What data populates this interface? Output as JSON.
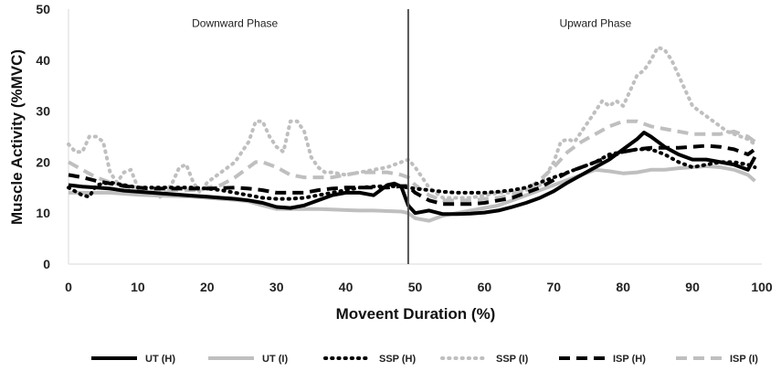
{
  "chart_data": {
    "type": "line",
    "title": "",
    "xlabel": "Moveent Duration (%)",
    "ylabel": "Muscle Activity (%MVC)",
    "xlim": [
      0,
      100
    ],
    "ylim": [
      0,
      50
    ],
    "xticks": [
      0,
      10,
      20,
      30,
      40,
      50,
      60,
      70,
      80,
      90,
      100
    ],
    "yticks": [
      0,
      10,
      20,
      30,
      40,
      50
    ],
    "grid": false,
    "divider_x": 49,
    "annotations": [
      {
        "text": "Downward Phase",
        "x": 24,
        "y": 46.5
      },
      {
        "text": "Upward Phase",
        "x": 76,
        "y": 46.5
      }
    ],
    "legend_position": "bottom",
    "series": [
      {
        "name": "UT (H)",
        "color": "#000000",
        "style": "solid",
        "width": 4,
        "x": [
          0,
          2,
          4,
          6,
          8,
          10,
          12,
          14,
          16,
          18,
          20,
          22,
          24,
          26,
          28,
          30,
          32,
          34,
          36,
          38,
          40,
          42,
          44,
          46,
          47,
          48,
          49,
          50,
          52,
          54,
          56,
          58,
          60,
          62,
          64,
          66,
          68,
          70,
          72,
          74,
          76,
          78,
          80,
          82,
          83,
          84,
          86,
          88,
          90,
          92,
          94,
          96,
          98,
          99
        ],
        "values": [
          15.5,
          15.2,
          15,
          14.8,
          14.4,
          14.2,
          14,
          13.8,
          13.6,
          13.4,
          13.2,
          13,
          12.8,
          12.5,
          12,
          11.2,
          11,
          11.5,
          12.5,
          13.5,
          14,
          14,
          13.5,
          15.5,
          15.8,
          15.2,
          11.5,
          10,
          10.5,
          9.8,
          9.8,
          9.9,
          10.1,
          10.5,
          11.2,
          12,
          13,
          14.3,
          16,
          17.5,
          19,
          20.5,
          22.5,
          24.5,
          25.8,
          25,
          23,
          21.5,
          20.5,
          20.5,
          20,
          19.5,
          18.5,
          21
        ]
      },
      {
        "name": "UT (I)",
        "color": "#BFBFBF",
        "style": "solid",
        "width": 4,
        "x": [
          0,
          2,
          4,
          6,
          8,
          10,
          12,
          14,
          16,
          18,
          20,
          22,
          24,
          26,
          28,
          30,
          32,
          34,
          36,
          38,
          40,
          42,
          44,
          46,
          48,
          49,
          50,
          52,
          54,
          56,
          58,
          60,
          62,
          64,
          66,
          68,
          70,
          72,
          74,
          76,
          78,
          80,
          82,
          84,
          86,
          88,
          90,
          92,
          94,
          96,
          98,
          99
        ],
        "values": [
          14,
          14,
          14,
          14,
          13.8,
          13.6,
          13.5,
          13.4,
          13.3,
          13.2,
          13,
          12.8,
          12.6,
          12.3,
          11.5,
          10.8,
          10.8,
          10.8,
          10.8,
          10.7,
          10.6,
          10.5,
          10.5,
          10.4,
          10.3,
          10,
          9,
          8.5,
          9.5,
          10,
          10.5,
          11,
          11.5,
          12.5,
          13.5,
          14.5,
          15.5,
          16.5,
          17.5,
          18.5,
          18.2,
          17.8,
          18,
          18.5,
          18.5,
          18.8,
          19,
          19.2,
          19,
          18.5,
          17.5,
          16.3
        ]
      },
      {
        "name": "SSP (H)",
        "color": "#000000",
        "style": "dotted",
        "width": 4,
        "x": [
          0,
          2,
          3,
          4,
          6,
          8,
          10,
          12,
          14,
          16,
          18,
          20,
          22,
          24,
          26,
          28,
          30,
          32,
          34,
          36,
          38,
          40,
          42,
          44,
          46,
          48,
          49,
          50,
          52,
          54,
          56,
          58,
          60,
          62,
          64,
          66,
          68,
          70,
          72,
          74,
          76,
          78,
          80,
          82,
          84,
          86,
          88,
          90,
          92,
          94,
          96,
          98,
          99
        ],
        "values": [
          15,
          13.5,
          13.2,
          15.5,
          16,
          15.5,
          15,
          15,
          15,
          15,
          15,
          14.8,
          14.5,
          14,
          13.5,
          13,
          12.8,
          12.8,
          13,
          13.5,
          14,
          14.5,
          15,
          15.2,
          15.3,
          15.2,
          15,
          14.8,
          14.5,
          14.2,
          14,
          14,
          14,
          14.2,
          14.5,
          15,
          16,
          17,
          18,
          19,
          20,
          21.5,
          22,
          22.5,
          22.5,
          21.5,
          20,
          19,
          19.5,
          20,
          20,
          19.5,
          19
        ]
      },
      {
        "name": "SSP (I)",
        "color": "#BFBFBF",
        "style": "dotted",
        "width": 4,
        "x": [
          0,
          1,
          2,
          3,
          4,
          5,
          6,
          7,
          8,
          9,
          10,
          11,
          12,
          13,
          14,
          15,
          16,
          17,
          18,
          19,
          20,
          21,
          22,
          23,
          24,
          25,
          26,
          27,
          28,
          29,
          30,
          31,
          32,
          33,
          34,
          35,
          36,
          37,
          38,
          40,
          42,
          44,
          46,
          48,
          49,
          50,
          51,
          52,
          54,
          56,
          58,
          60,
          62,
          64,
          66,
          68,
          70,
          71,
          72,
          73,
          74,
          75,
          76,
          77,
          78,
          79,
          80,
          81,
          82,
          83,
          84,
          85,
          86,
          87,
          88,
          89,
          90,
          91,
          92,
          93,
          94,
          95,
          96,
          97,
          98,
          99
        ],
        "values": [
          23.5,
          22,
          22,
          25,
          25,
          24,
          18,
          16,
          18,
          18.5,
          15,
          14,
          14,
          13,
          14,
          16,
          19,
          19.5,
          16,
          14,
          16,
          17,
          18,
          19,
          20,
          22,
          24,
          28,
          28,
          25,
          23,
          22,
          28,
          28,
          26,
          21,
          19,
          18,
          18,
          17.5,
          18,
          18.5,
          19,
          20,
          20.5,
          19,
          17,
          15,
          13,
          13,
          13,
          13.5,
          14,
          14,
          14.5,
          15.5,
          20,
          24,
          24.5,
          24,
          26,
          28,
          30,
          32,
          31,
          32,
          31,
          34,
          37,
          38,
          40,
          42.5,
          42,
          40,
          37,
          34,
          31,
          30,
          29,
          28,
          27,
          26,
          25.5,
          25,
          24.5,
          23.5
        ]
      },
      {
        "name": "ISP (H)",
        "color": "#000000",
        "style": "dashed",
        "width": 4,
        "x": [
          0,
          2,
          4,
          6,
          8,
          10,
          12,
          14,
          16,
          18,
          20,
          22,
          24,
          26,
          28,
          30,
          32,
          34,
          36,
          38,
          40,
          42,
          44,
          46,
          48,
          49,
          50,
          52,
          54,
          56,
          58,
          60,
          62,
          64,
          66,
          68,
          70,
          72,
          74,
          76,
          78,
          80,
          82,
          84,
          86,
          88,
          90,
          92,
          94,
          96,
          98,
          99
        ],
        "values": [
          17.5,
          17,
          16.3,
          15.8,
          15.3,
          15,
          14.8,
          14.8,
          14.8,
          14.8,
          14.8,
          14.9,
          15,
          14.8,
          14.5,
          14,
          14,
          14,
          14.5,
          14.8,
          15,
          15,
          15,
          15,
          15.3,
          15.3,
          14,
          12.5,
          11.8,
          11.8,
          11.8,
          12,
          12.5,
          13,
          14,
          15,
          16.5,
          18,
          19,
          20,
          21,
          22,
          22.5,
          22.8,
          22.8,
          22.8,
          23,
          23.2,
          23,
          22.5,
          21.5,
          22.5
        ]
      },
      {
        "name": "ISP (I)",
        "color": "#BFBFBF",
        "style": "dashed",
        "width": 4,
        "x": [
          0,
          2,
          4,
          6,
          8,
          10,
          12,
          14,
          16,
          18,
          20,
          22,
          24,
          26,
          27,
          28,
          30,
          32,
          34,
          36,
          38,
          40,
          42,
          44,
          46,
          48,
          49,
          50,
          52,
          54,
          56,
          58,
          60,
          62,
          64,
          66,
          68,
          70,
          72,
          74,
          76,
          78,
          80,
          82,
          84,
          86,
          88,
          90,
          92,
          94,
          96,
          98,
          99
        ],
        "values": [
          20,
          18.5,
          17,
          16,
          15.5,
          15,
          14.8,
          14.5,
          14.5,
          14.5,
          15,
          15.5,
          17,
          19,
          20,
          20,
          19,
          17.5,
          17,
          17,
          17,
          17.5,
          18,
          18,
          18,
          17.5,
          17,
          15.5,
          13.5,
          12.5,
          12.5,
          12.5,
          12.8,
          13,
          13.5,
          14.5,
          16.5,
          19,
          22,
          24,
          25.5,
          27,
          28,
          28,
          27,
          26.5,
          26,
          25.5,
          25.5,
          25.5,
          26,
          25,
          24
        ]
      }
    ]
  }
}
